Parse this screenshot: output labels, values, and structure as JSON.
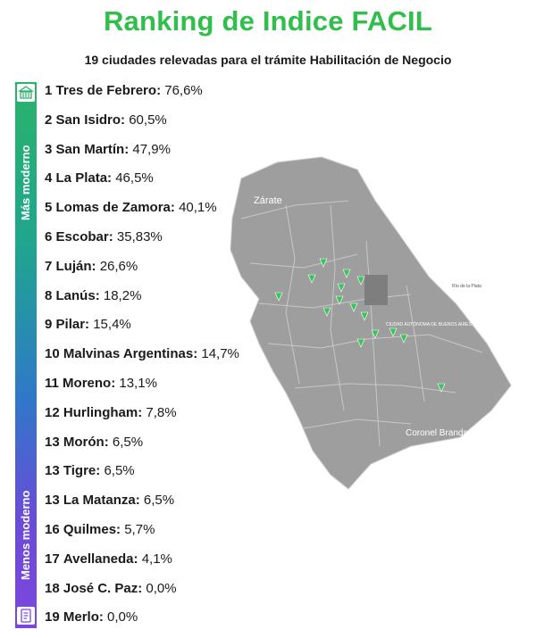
{
  "title": "Ranking de Indice FACIL",
  "subtitle": "19 ciudades relevadas para el trámite Habilitación de Negocio",
  "scale": {
    "top_label": "Más moderno",
    "bottom_label": "Menos moderno"
  },
  "colors": {
    "title": "#2fbf4a",
    "map_fill": "#9e9e9e",
    "marker": "#3cc45a"
  },
  "icons": {
    "top": "building-icon",
    "bottom": "document-icon"
  },
  "map_labels": {
    "zarate": "Zárate",
    "coronel_brandsen": "Coronel Brandsen",
    "caba": "CIUDAD AUTÓNOMA DE BUENOS AIRES",
    "rio_de_la_plata": "Río de la Plata"
  },
  "chart_data": {
    "type": "table",
    "title": "Ranking de Indice FACIL",
    "subtitle": "19 ciudades relevadas para el trámite Habilitación de Negocio",
    "rows": [
      {
        "rank": "1",
        "city": "Tres de Febrero",
        "value": 76.6,
        "display": "76,6%"
      },
      {
        "rank": "2",
        "city": "San Isidro",
        "value": 60.5,
        "display": "60,5%"
      },
      {
        "rank": "3",
        "city": "San Martín",
        "value": 47.9,
        "display": "47,9%"
      },
      {
        "rank": "4",
        "city": "La Plata",
        "value": 46.5,
        "display": "46,5%"
      },
      {
        "rank": "5",
        "city": "Lomas de Zamora",
        "value": 40.1,
        "display": "40,1%"
      },
      {
        "rank": "6",
        "city": "Escobar",
        "value": 35.83,
        "display": "35,83%"
      },
      {
        "rank": "7",
        "city": "Luján",
        "value": 26.6,
        "display": "26,6%"
      },
      {
        "rank": "8",
        "city": "Lanús",
        "value": 18.2,
        "display": "18,2%"
      },
      {
        "rank": "9",
        "city": "Pilar",
        "value": 15.4,
        "display": "15,4%"
      },
      {
        "rank": "10",
        "city": "Malvinas Argentinas",
        "value": 14.7,
        "display": "14,7%"
      },
      {
        "rank": "11",
        "city": "Moreno",
        "value": 13.1,
        "display": "13,1%"
      },
      {
        "rank": "12",
        "city": "Hurlingham",
        "value": 7.8,
        "display": "7,8%"
      },
      {
        "rank": "13",
        "city": "Morón",
        "value": 6.5,
        "display": "6,5%"
      },
      {
        "rank": "13",
        "city": "Tigre",
        "value": 6.5,
        "display": "6,5%"
      },
      {
        "rank": "13",
        "city": "La Matanza",
        "value": 6.5,
        "display": "6,5%"
      },
      {
        "rank": "16",
        "city": "Quilmes",
        "value": 5.7,
        "display": "5,7%"
      },
      {
        "rank": "17",
        "city": "Avellaneda",
        "value": 4.1,
        "display": "4,1%"
      },
      {
        "rank": "18",
        "city": "José C. Paz",
        "value": 0.0,
        "display": "0,0%"
      },
      {
        "rank": "19",
        "city": "Merlo",
        "value": 0.0,
        "display": "0,0%"
      }
    ]
  }
}
